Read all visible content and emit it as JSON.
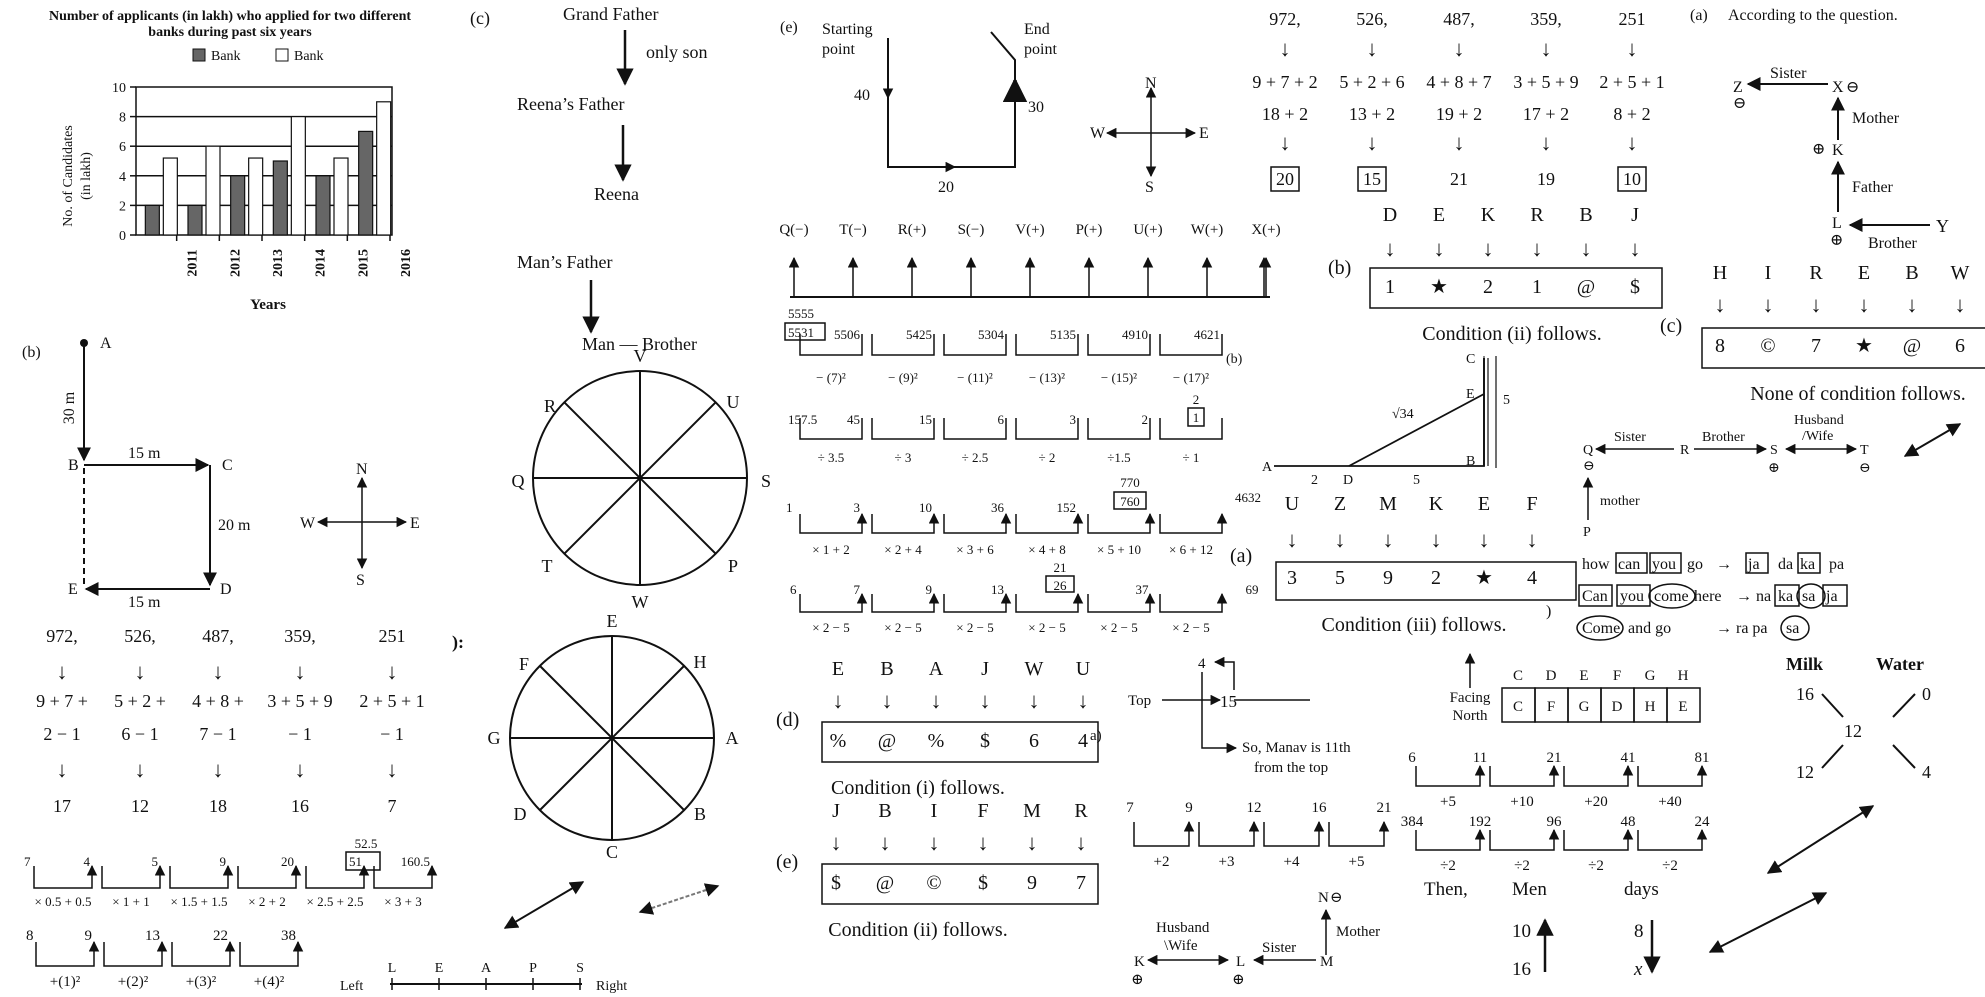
{
  "chart": {
    "title_line1": "Number of applicants (in lakh) who applied for two different",
    "title_line2": "banks during past six years",
    "legend": [
      "Bank",
      "Bank"
    ],
    "ylabel_line1": "No. of Candidates",
    "ylabel_line2": "(in lakh)",
    "xlabel": "Years",
    "y_ticks": [
      "0",
      "2",
      "4",
      "6",
      "8",
      "10"
    ],
    "x_ticks": [
      "2011",
      "2012",
      "2013",
      "2014",
      "2015",
      "2016"
    ]
  },
  "chart_data": {
    "type": "bar",
    "title": "Number of applicants (in lakh) who applied for two different banks during past six years",
    "xlabel": "Years",
    "ylabel": "No. of Candidates (in lakh)",
    "ylim": [
      0,
      10
    ],
    "categories": [
      "2011",
      "2012",
      "2013",
      "2014",
      "2015",
      "2016"
    ],
    "grid": "horizontal",
    "legend_position": "top",
    "series": [
      {
        "name": "Bank",
        "color": "#666666",
        "values": [
          2,
          2,
          4,
          5,
          4,
          7
        ]
      },
      {
        "name": "Bank",
        "color": "#ffffff",
        "values": [
          5.2,
          6,
          5.2,
          8,
          5.2,
          9
        ]
      }
    ]
  },
  "sec_b1": {
    "label": "(b)",
    "A": "A",
    "B": "B",
    "C": "C",
    "D": "D",
    "E": "E",
    "d30": "30 m",
    "d15a": "15 m",
    "d20": "20 m",
    "d15b": "15 m",
    "N": "N",
    "S": "S",
    "W": "W",
    "E_dir": "E"
  },
  "calc1": {
    "nums": [
      "972,",
      "526,",
      "487,",
      "359,",
      "251"
    ],
    "row1": [
      "9 + 7 +",
      "5 + 2 +",
      "4 + 8 +",
      "3 + 5 + 9",
      "2 + 5 + 1"
    ],
    "row2": [
      "2 − 1",
      "6 − 1",
      "7 − 1",
      "− 1",
      "− 1"
    ],
    "res": [
      "17",
      "12",
      "18",
      "16",
      "7"
    ],
    "arrow": "↓",
    "side": "):"
  },
  "series_a": {
    "nums": [
      "7",
      "4",
      "5",
      "9",
      "20",
      "51",
      "160.5"
    ],
    "top": "52.5",
    "ops": [
      "× 0.5 + 0.5",
      "× 1 + 1",
      "× 1.5 + 1.5",
      "× 2 + 2",
      "× 2.5 + 2.5",
      "× 3 + 3"
    ]
  },
  "series_b": {
    "nums": [
      "8",
      "9",
      "13",
      "22",
      "38"
    ],
    "ops": [
      "+(1)²",
      "+(2)²",
      "+(3)²",
      "+(4)²"
    ]
  },
  "sec_c": {
    "label": "(c)",
    "gf": "Grand Father",
    "son": "only son",
    "rf": "Reena’s Father",
    "reena": "Reena",
    "mf": "Man’s Father",
    "man": "Man — Brother"
  },
  "circle1": [
    "V",
    "U",
    "S",
    "P",
    "W",
    "T",
    "Q",
    "R"
  ],
  "circle2": [
    "E",
    "H",
    "A",
    "B",
    "C",
    "D",
    "G",
    "F"
  ],
  "line_order": {
    "left": "Left",
    "right": "Right",
    "letters": [
      "L",
      "E",
      "A",
      "P",
      "S"
    ]
  },
  "sec_e": {
    "label": "(e)",
    "start": "Starting",
    "point": "point",
    "end": "End",
    "endpt": "point",
    "d40": "40",
    "d20": "20",
    "d30": "30",
    "N": "N",
    "S": "S",
    "W": "W",
    "E": "E"
  },
  "row_q": [
    "Q(−)",
    "T(−)",
    "R(+)",
    "S(−)",
    "V(+)",
    "P(+)",
    "U(+)",
    "W(+)",
    "X(+)"
  ],
  "ser1": {
    "nums": [
      "5555",
      "5531",
      "5506",
      "5425",
      "5304",
      "5135",
      "4910",
      "4621"
    ],
    "ops": [
      "− (7)²",
      "− (9)²",
      "− (11)²",
      "− (13)²",
      "− (15)²",
      "− (17)²"
    ]
  },
  "ser2": {
    "nums": [
      "157.5",
      "45",
      "15",
      "6",
      "3",
      "2",
      "2",
      "1"
    ],
    "ops": [
      "÷ 3.5",
      "÷ 3",
      "÷ 2.5",
      "÷ 2",
      "÷1.5",
      "÷ 1"
    ]
  },
  "ser3": {
    "nums": [
      "1",
      "3",
      "10",
      "36",
      "152",
      "770",
      "760",
      "4632"
    ],
    "ops": [
      "× 1 + 2",
      "× 2 + 4",
      "× 3 + 6",
      "× 4 + 8",
      "× 5 + 10",
      "× 6 + 12"
    ]
  },
  "ser4": {
    "nums": [
      "6",
      "7",
      "9",
      "13",
      "21",
      "26",
      "37",
      "69"
    ],
    "ops": [
      "× 2 − 5",
      "× 2 − 5",
      "× 2 − 5",
      "× 2 − 5",
      "× 2 − 5",
      "× 2 − 5"
    ]
  },
  "code_d": {
    "label": "(d)",
    "letters": [
      "E",
      "B",
      "A",
      "J",
      "W",
      "U"
    ],
    "codes": [
      "%",
      "@",
      "%",
      "$",
      "6",
      "4"
    ],
    "cond": "Condition (i) follows."
  },
  "code_e": {
    "label": "(e)",
    "letters": [
      "J",
      "B",
      "I",
      "F",
      "M",
      "R"
    ],
    "codes": [
      "$",
      "@",
      "©",
      "$",
      "9",
      "7"
    ],
    "cond": "Condition (ii) follows."
  },
  "calc2": {
    "nums": [
      "972,",
      "526,",
      "487,",
      "359,",
      "251"
    ],
    "row1": [
      "9 + 7 + 2",
      "5 + 2 + 6",
      "4 + 8 + 7",
      "3 + 5 + 9",
      "2 + 5 + 1"
    ],
    "row2": [
      "18 + 2",
      "13 + 2",
      "19 + 2",
      "17 + 2",
      "8 + 2"
    ],
    "res": [
      "20",
      "15",
      "21",
      "19",
      "10"
    ]
  },
  "code_b": {
    "label": "(b)",
    "letters": [
      "D",
      "E",
      "K",
      "R",
      "B",
      "J"
    ],
    "codes": [
      "1",
      "★",
      "2",
      "1",
      "@",
      "$"
    ],
    "cond": "Condition (ii) follows."
  },
  "tri": {
    "label": "(b)",
    "A": "A",
    "D": "D",
    "B": "B",
    "E": "E",
    "C": "C",
    "sqrt": "√34",
    "two": "2",
    "five": "5",
    "five2": "5"
  },
  "code_a": {
    "label": "(a)",
    "letters": [
      "U",
      "Z",
      "M",
      "K",
      "E",
      "F"
    ],
    "codes": [
      "3",
      "5",
      "9",
      "2",
      "★",
      "4"
    ],
    "cond": "Condition (iii) follows."
  },
  "rank": {
    "label": "a)",
    "top": "Top",
    "four": "4",
    "fifteen": "15",
    "note1": "So, Manav is 11th",
    "note2": "from the top"
  },
  "ser5": {
    "nums": [
      "7",
      "9",
      "12",
      "16",
      "21"
    ],
    "ops": [
      "+2",
      "+3",
      "+4",
      "+5"
    ]
  },
  "fam1": {
    "K": "K",
    "L": "L",
    "M": "M",
    "N": "N",
    "husband": "Husband",
    "wife": "\\Wife",
    "sister": "Sister",
    "mother": "Mother",
    "plus": "⊕",
    "minus": "⊖"
  },
  "seat": {
    "facing": "Facing",
    "north": "North",
    "top": [
      "C",
      "D",
      "E",
      "F",
      "G",
      "H"
    ],
    "cells": [
      "C",
      "F",
      "G",
      "D",
      "H",
      "E"
    ]
  },
  "ser6": {
    "nums": [
      "6",
      "11",
      "21",
      "41",
      "81"
    ],
    "ops": [
      "+5",
      "+10",
      "+20",
      "+40"
    ]
  },
  "ser7": {
    "nums": [
      "384",
      "192",
      "96",
      "48",
      "24"
    ],
    "ops": [
      "÷2",
      "÷2",
      "÷2",
      "÷2"
    ]
  },
  "men": {
    "then": "Then,",
    "men": "Men",
    "days": "days",
    "m1": "10",
    "m2": "16",
    "d1": "8",
    "d2": "x"
  },
  "fam2": {
    "label": "(a)",
    "q": "According to the question.",
    "Z": "Z",
    "X": "X",
    "K": "K",
    "L": "L",
    "Y": "Y",
    "sister": "Sister",
    "mother": "Mother",
    "father": "Father",
    "brother": "Brother"
  },
  "code_c": {
    "label": "(c)",
    "letters": [
      "H",
      "I",
      "R",
      "E",
      "B",
      "W"
    ],
    "codes": [
      "8",
      "©",
      "7",
      "★",
      "@",
      "6"
    ],
    "cond": "None of condition follows."
  },
  "fam3": {
    "Q": "Q",
    "R": "R",
    "S": "S",
    "T": "T",
    "P": "P",
    "sister": "Sister",
    "brother": "Brother",
    "husband": "Husband",
    "wife": "/Wife",
    "mother": "mother"
  },
  "lang": {
    "label": ")",
    "r1": [
      "how",
      "can",
      "you",
      "go",
      "→",
      "ja",
      "da",
      "ka",
      "pa"
    ],
    "r2": [
      "Can",
      "you",
      "come",
      "here",
      "→ na",
      "ka",
      "sa",
      "ja"
    ],
    "r3": [
      "Come",
      "and go",
      "→ ra pa",
      "sa"
    ]
  },
  "mix": {
    "milk": "Milk",
    "water": "Water",
    "n16": "16",
    "n0": "0",
    "n12c": "12",
    "n12": "12",
    "n4": "4"
  }
}
